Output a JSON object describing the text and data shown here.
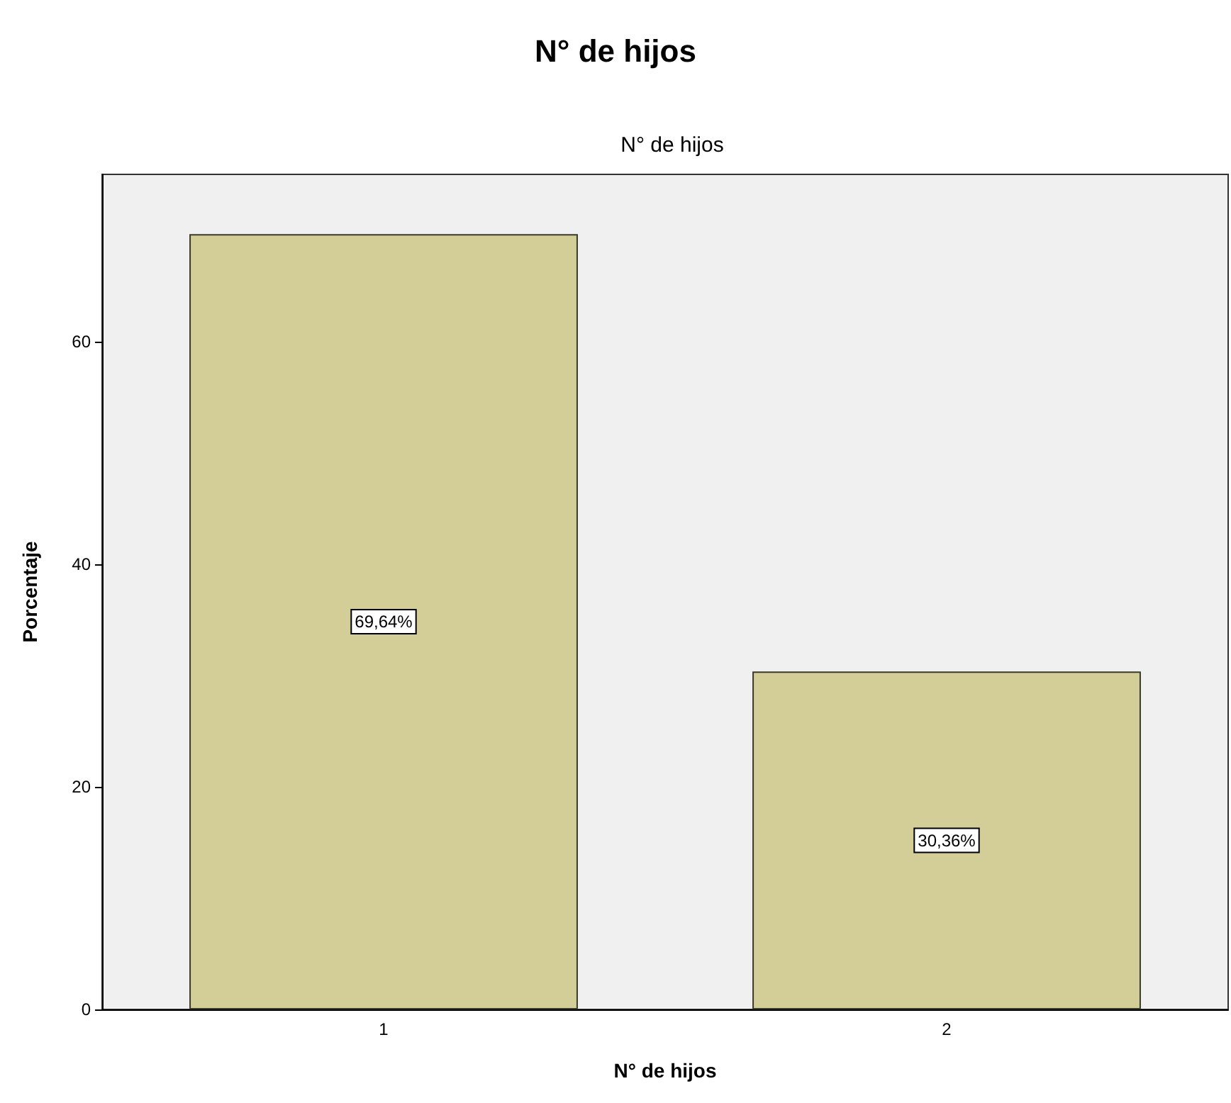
{
  "chart_data": {
    "type": "bar",
    "title": "N° de hijos",
    "subtitle": "N° de hijos",
    "xlabel": "N° de hijos",
    "ylabel": "Porcentaje",
    "categories": [
      "1",
      "2"
    ],
    "values": [
      69.64,
      30.36
    ],
    "value_labels": [
      "69,64%",
      "30,36%"
    ],
    "color": "#d3ce97",
    "ylim": [
      0,
      75
    ],
    "yticks": [
      0,
      20,
      40,
      60
    ]
  }
}
